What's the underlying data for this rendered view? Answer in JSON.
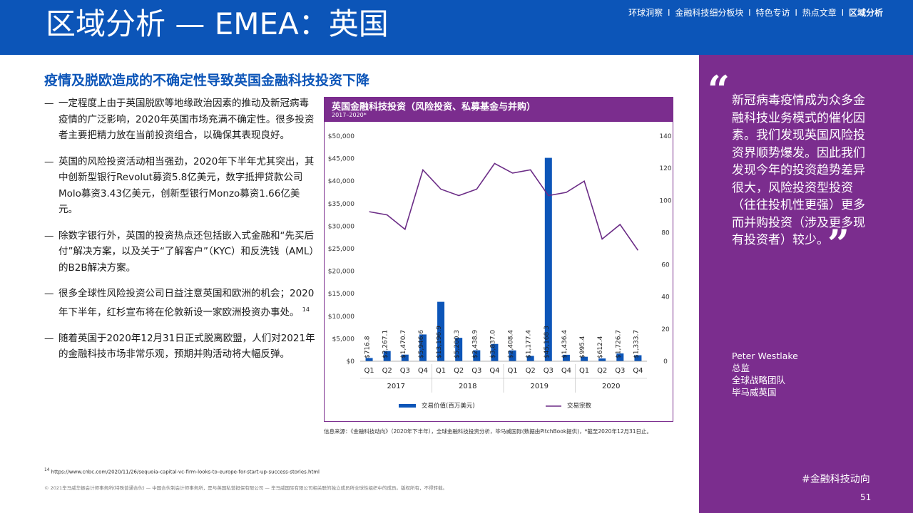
{
  "header": {
    "title": "区域分析 — EMEA：英国",
    "nav": [
      "环球洞察",
      "金融科技细分板块",
      "特色专访",
      "热点文章",
      "区域分析"
    ],
    "nav_separator": "I",
    "bg_color": "#0c55b8"
  },
  "subtitle": "疫情及脱欧造成的不确定性导致英国金融科技投资下降",
  "bullets": [
    {
      "dash": "—",
      "text": "一定程度上由于英国脱欧等地缘政治因素的推动及新冠病毒疫情的广泛影响，2020年英国市场充满不确定性。很多投资者主要把精力放在当前投资组合，以确保其表现良好。"
    },
    {
      "dash": "—",
      "text": "英国的风险投资活动相当强劲，2020年下半年尤其突出，其中创新型银行Revolut募资5.8亿美元，数字抵押贷款公司Molo募资3.43亿美元，创新型银行Monzo募资1.66亿美元。"
    },
    {
      "dash": "—",
      "text": "除数字银行外，英国的投资热点还包括嵌入式金融和“先买后付”解决方案，以及关于“了解客户”（KYC）和反洗钱（AML）的B2B解决方案。"
    },
    {
      "dash": "—",
      "text": "很多全球性风险投资公司日益注意英国和欧洲的机会；2020年下半年，红杉宣布将在伦敦新设一家欧洲投资办事处。",
      "sup": "14"
    },
    {
      "dash": "—",
      "text": "随着英国于2020年12月31日正式脱离欧盟，人们对2021年的金融科技市场非常乐观，预期并购活动将大幅反弹。"
    }
  ],
  "chart_data": {
    "type": "bar",
    "title": "英国金融科技投资（风险投资、私募基金与并购）",
    "subtitle": "2017–2020*",
    "categories": [
      "Q1",
      "Q2",
      "Q3",
      "Q4",
      "Q1",
      "Q2",
      "Q3",
      "Q4",
      "Q1",
      "Q2",
      "Q3",
      "Q4",
      "Q1",
      "Q2",
      "Q3",
      "Q4"
    ],
    "years": [
      {
        "label": "2017",
        "quarters": 4
      },
      {
        "label": "2018",
        "quarters": 4
      },
      {
        "label": "2019",
        "quarters": 4
      },
      {
        "label": "2020",
        "quarters": 4
      }
    ],
    "series": [
      {
        "name": "交易价值(百万美元)",
        "type": "bar",
        "axis": "left",
        "color": "#0c55b8",
        "values": [
          716.8,
          2267.1,
          1470.7,
          5946.6,
          13196.9,
          5200.3,
          2438.9,
          3837.0,
          2408.4,
          1177.4,
          45168.3,
          1436.4,
          995.4,
          612.4,
          1726.7,
          1333.7
        ],
        "labels": [
          "$716.8",
          "$2,267.1",
          "$1,470.7",
          "$5,946.6",
          "$13,196.9",
          "$5,200.3",
          "$2,438.9",
          "$3,837.0",
          "$2,408.4",
          "$1,177.4",
          "$45,168.3",
          "$1,436.4",
          "$995.4",
          "$612.4",
          "$1,726.7",
          "$1,333.7"
        ]
      },
      {
        "name": "交易宗数",
        "type": "line",
        "axis": "right",
        "color": "#6b2c86",
        "values": [
          93,
          91,
          82,
          119,
          107,
          103,
          107,
          123,
          117,
          119,
          103,
          105,
          112,
          76,
          85,
          69
        ]
      }
    ],
    "y_left": {
      "range": [
        0,
        50000
      ],
      "ticks": [
        "$0",
        "$5,000",
        "$10,000",
        "$15,000",
        "$20,000",
        "$25,000",
        "$30,000",
        "$35,000",
        "$40,000",
        "$45,000",
        "$50,000"
      ]
    },
    "y_right": {
      "range": [
        0,
        140
      ],
      "ticks": [
        "0",
        "20",
        "40",
        "60",
        "80",
        "100",
        "120",
        "140"
      ]
    },
    "grid": false,
    "legend": "bottom"
  },
  "source": "信息来源：《金融科技动向》（2020年下半年），全球金融科技投资分析，毕马威国际(数据由PitchBook提供)，*截至2020年12月31日止。",
  "footnote": {
    "sup": "14",
    "text": "https://www.cnbc.com/2020/11/26/sequoia-capital-vc-firm-looks-to-europe-for-start-up-success-stories.html"
  },
  "copyright": "© 2021毕马威华振会计师事务所(特殊普通合伙) — 中国合伙制会计师事务所，是与英国私营担保有限公司 — 毕马威国际有限公司相关联的独立成员所全球性组织中的成员。版权所有，不得转载。",
  "sidebar": {
    "quote_open": "“",
    "quote": "新冠病毒疫情成为众多金融科技业务模式的催化因素。我们发现英国风险投资界顺势爆发。因此我们发现今年的投资趋势差异很大，风险投资型投资（往往投机性更强）更多而并购投资（涉及更多现有投资者）较少。",
    "quote_close": "”",
    "author_name": "Peter Westlake",
    "author_title": "总监",
    "author_team": "全球战略团队",
    "author_org": "毕马威英国",
    "hashtag": "#金融科技动向",
    "page_number": "51",
    "bg_color": "#7b2d8e"
  }
}
